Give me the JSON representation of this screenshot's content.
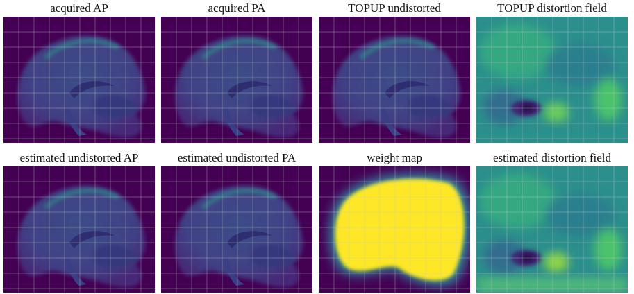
{
  "panels": [
    {
      "title": "acquired AP"
    },
    {
      "title": "acquired PA"
    },
    {
      "title": "TOPUP undistorted"
    },
    {
      "title": "TOPUP distortion field"
    },
    {
      "title": "estimated undistorted AP"
    },
    {
      "title": "estimated undistorted PA"
    },
    {
      "title": "weight map"
    },
    {
      "title": "estimated distortion field"
    }
  ]
}
